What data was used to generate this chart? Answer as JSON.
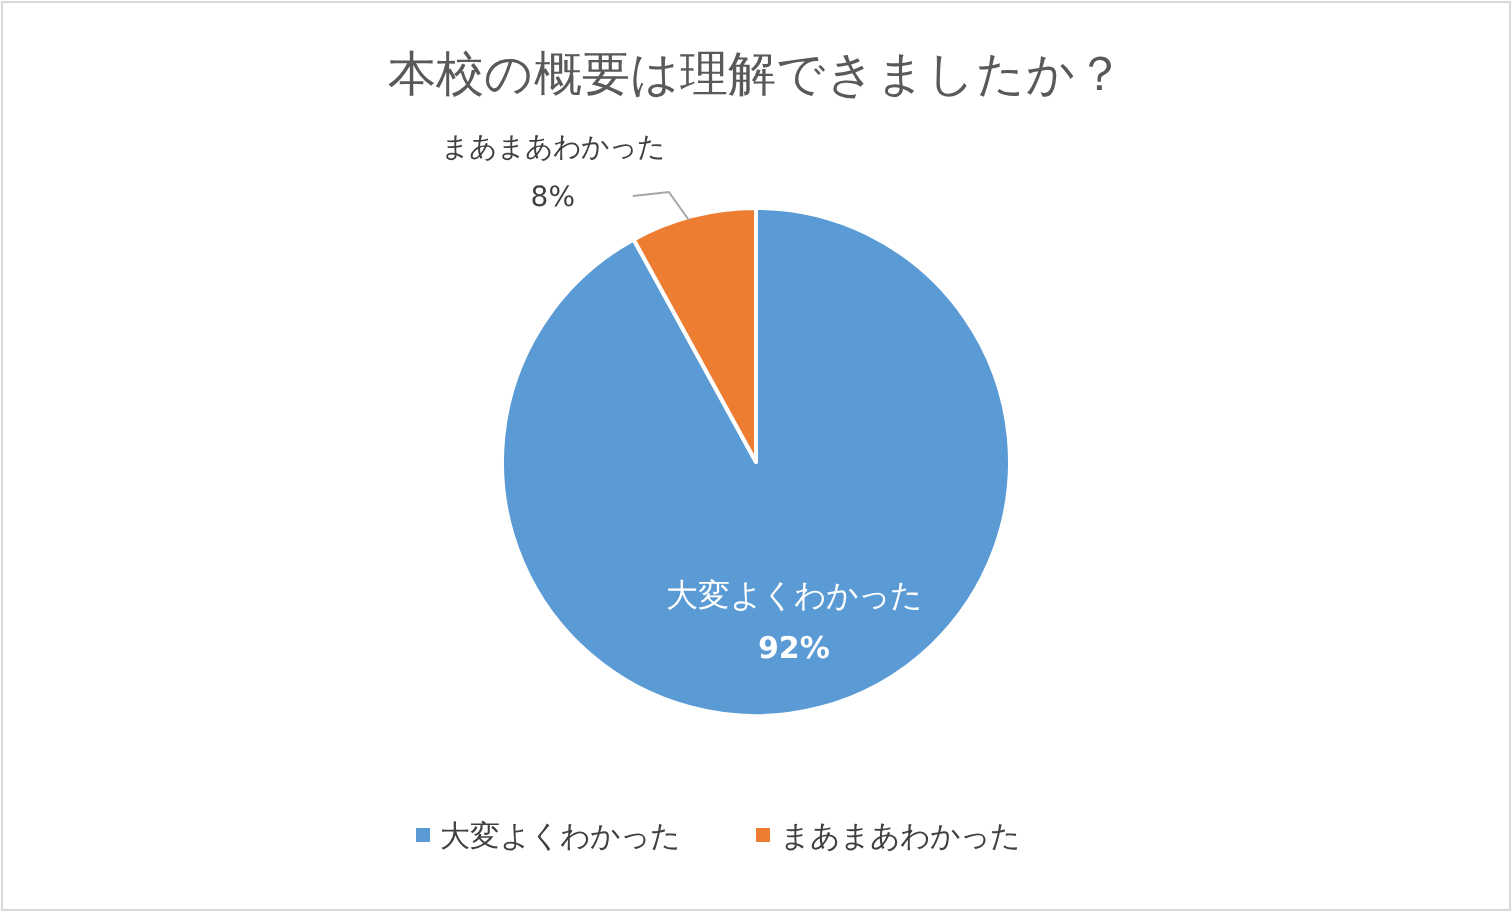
{
  "chart_data": {
    "type": "pie",
    "title": "本校の概要は理解できましたか？",
    "categories": [
      "大変よくわかった",
      "まあまあわかった"
    ],
    "values": [
      92,
      8
    ],
    "colors": [
      "#5b9bd5",
      "#ed7d31"
    ],
    "value_labels": [
      "92%",
      "8%"
    ],
    "legend": "bottom"
  }
}
